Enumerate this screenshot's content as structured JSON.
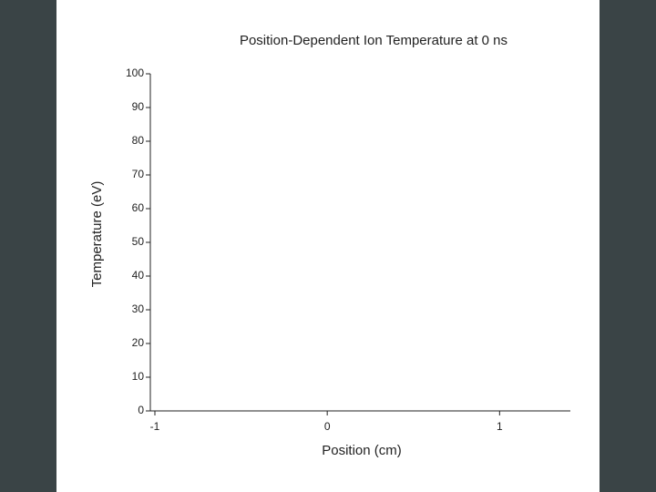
{
  "chart_data": {
    "type": "line",
    "title": "Position-Dependent Ion Temperature at 0 ns",
    "x_label": "Position (cm)",
    "y_label": "Temperature (eV)",
    "xlim": [
      -1,
      1.4
    ],
    "xticks": [
      -1,
      0,
      1
    ],
    "ylim": [
      0,
      100
    ],
    "yticks": [
      0,
      10,
      20,
      30,
      40,
      50,
      60,
      70,
      80,
      90,
      100
    ]
  }
}
